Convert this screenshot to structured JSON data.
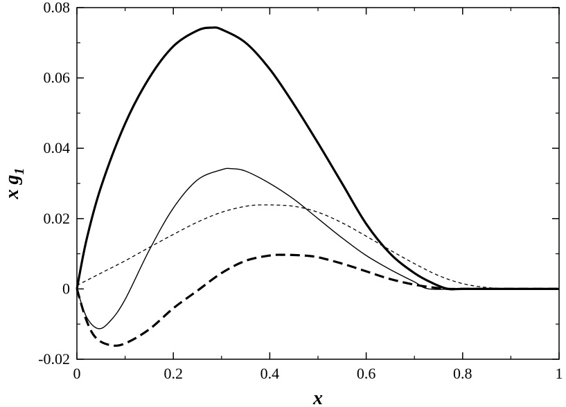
{
  "chart_data": {
    "type": "line",
    "title": "",
    "xlabel": "x",
    "ylabel": {
      "main": "x g",
      "sub": "1"
    },
    "xlim": [
      0,
      1
    ],
    "ylim": [
      -0.02,
      0.08
    ],
    "x_ticks": [
      0,
      0.2,
      0.4,
      0.6,
      0.8,
      1
    ],
    "x_tick_labels": [
      "0",
      "0.2",
      "0.4",
      "0.6",
      "0.8",
      "1"
    ],
    "y_ticks": [
      -0.02,
      0,
      0.02,
      0.04,
      0.06,
      0.08
    ],
    "y_tick_labels": [
      "-0.02",
      "0",
      "0.02",
      "0.04",
      "0.06",
      "0.08"
    ],
    "grid": false,
    "legend": "none",
    "series": [
      {
        "style": "thick solid",
        "x": [
          0,
          0.02,
          0.05,
          0.1,
          0.15,
          0.2,
          0.25,
          0.28,
          0.3,
          0.35,
          0.4,
          0.45,
          0.5,
          0.55,
          0.6,
          0.65,
          0.7,
          0.74,
          0.77,
          0.8,
          0.9,
          1.0
        ],
        "y": [
          0,
          0.014,
          0.029,
          0.047,
          0.06,
          0.069,
          0.0735,
          0.0743,
          0.0738,
          0.07,
          0.0625,
          0.0525,
          0.0415,
          0.03,
          0.0185,
          0.01,
          0.0045,
          0.0015,
          0.0,
          0.0,
          0.0,
          0.0
        ]
      },
      {
        "style": "thin solid",
        "x": [
          0,
          0.02,
          0.045,
          0.07,
          0.1,
          0.15,
          0.2,
          0.25,
          0.3,
          0.32,
          0.35,
          0.4,
          0.45,
          0.5,
          0.55,
          0.6,
          0.65,
          0.7,
          0.73,
          0.8,
          0.9,
          1.0
        ],
        "y": [
          0,
          -0.008,
          -0.0113,
          -0.009,
          -0.003,
          0.011,
          0.023,
          0.031,
          0.0339,
          0.0342,
          0.0335,
          0.03,
          0.0255,
          0.02,
          0.0145,
          0.0095,
          0.0055,
          0.002,
          0.0,
          0.0,
          0.0,
          0.0
        ]
      },
      {
        "style": "thin dashed",
        "x": [
          0,
          0.05,
          0.1,
          0.15,
          0.2,
          0.25,
          0.3,
          0.35,
          0.39,
          0.45,
          0.5,
          0.55,
          0.6,
          0.65,
          0.7,
          0.75,
          0.8,
          0.85,
          0.9,
          0.95,
          1.0
        ],
        "y": [
          0.001,
          0.0045,
          0.008,
          0.0118,
          0.0155,
          0.019,
          0.0218,
          0.0235,
          0.0239,
          0.0235,
          0.0218,
          0.0188,
          0.015,
          0.011,
          0.0072,
          0.0038,
          0.0015,
          0.0004,
          0.0,
          0.0,
          0.0
        ]
      },
      {
        "style": "thick dashed",
        "x": [
          0,
          0.02,
          0.04,
          0.07,
          0.1,
          0.15,
          0.2,
          0.25,
          0.3,
          0.35,
          0.4,
          0.43,
          0.47,
          0.5,
          0.55,
          0.6,
          0.65,
          0.7,
          0.75,
          0.77,
          0.8,
          0.9,
          1.0
        ],
        "y": [
          0,
          -0.009,
          -0.014,
          -0.016,
          -0.0155,
          -0.0115,
          -0.0055,
          -0.0005,
          0.0045,
          0.008,
          0.0095,
          0.0097,
          0.0095,
          0.009,
          0.0072,
          0.005,
          0.0028,
          0.0012,
          0.0002,
          0.0,
          0.0,
          0.0,
          0.0
        ]
      }
    ]
  }
}
